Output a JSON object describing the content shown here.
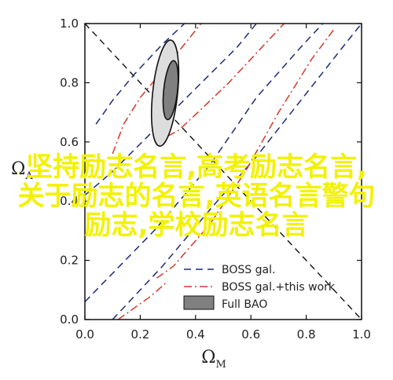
{
  "chart_data": {
    "type": "scatter",
    "title": "",
    "xlabel_main": "Ω",
    "xlabel_sub": "M",
    "ylabel_main": "Ω",
    "ylabel_sub": "Λ",
    "xlim": [
      0,
      1
    ],
    "ylim": [
      0,
      1
    ],
    "xticks": [
      "0.0",
      "0.2",
      "0.4",
      "0.6",
      "0.8",
      "1.0"
    ],
    "yticks": [
      "0.0",
      "0.2",
      "0.4",
      "0.6",
      "0.8",
      "1.0"
    ],
    "reference_lines": [
      {
        "x": [
          0,
          1
        ],
        "y": [
          1,
          0
        ],
        "style": "dashed"
      }
    ],
    "series": [
      {
        "name": "BOSS gal.",
        "style": "dashed",
        "color": "#1f2a7a",
        "contours": [
          [
            [
              0.0,
              0.06
            ],
            [
              0.25,
              0.3
            ],
            [
              0.45,
              0.52
            ],
            [
              0.62,
              0.75
            ],
            [
              0.78,
              0.92
            ],
            [
              0.86,
              1.0
            ]
          ],
          [
            [
              0.1,
              0.0
            ],
            [
              0.28,
              0.18
            ],
            [
              0.46,
              0.38
            ],
            [
              0.62,
              0.55
            ],
            [
              0.78,
              0.74
            ],
            [
              0.94,
              0.93
            ],
            [
              1.0,
              1.0
            ]
          ],
          [
            [
              0.04,
              0.66
            ],
            [
              0.1,
              0.74
            ],
            [
              0.18,
              0.83
            ],
            [
              0.28,
              0.93
            ],
            [
              0.36,
              1.0
            ]
          ],
          [
            [
              0.0,
              0.42
            ],
            [
              0.1,
              0.5
            ],
            [
              0.25,
              0.64
            ],
            [
              0.4,
              0.78
            ],
            [
              0.55,
              0.92
            ],
            [
              0.62,
              1.0
            ]
          ]
        ]
      },
      {
        "name": "BOSS gal.+this work",
        "style": "dashdot",
        "color": "#d03a2a",
        "contours": [
          [
            [
              0.26,
              0.14
            ],
            [
              0.32,
              0.18
            ],
            [
              0.45,
              0.32
            ],
            [
              0.58,
              0.5
            ],
            [
              0.7,
              0.7
            ],
            [
              0.82,
              0.88
            ],
            [
              0.9,
              0.98
            ]
          ],
          [
            [
              0.12,
              0.0
            ],
            [
              0.24,
              0.08
            ],
            [
              0.3,
              0.13
            ]
          ],
          [
            [
              0.1,
              0.56
            ],
            [
              0.14,
              0.66
            ],
            [
              0.2,
              0.75
            ],
            [
              0.28,
              0.84
            ],
            [
              0.36,
              0.93
            ],
            [
              0.42,
              1.0
            ]
          ],
          [
            [
              0.3,
              0.62
            ],
            [
              0.34,
              0.64
            ],
            [
              0.42,
              0.71
            ],
            [
              0.52,
              0.8
            ],
            [
              0.62,
              0.9
            ],
            [
              0.72,
              1.0
            ]
          ]
        ]
      },
      {
        "name": "Full BAO",
        "style": "filled",
        "color": "#808080",
        "inner_color": "#666666",
        "ellipses": [
          {
            "center": [
              0.29,
              0.765
            ],
            "major": 0.18,
            "minor": 0.045,
            "angle_deg": 84,
            "fill": "#dddddd"
          },
          {
            "center": [
              0.31,
              0.775
            ],
            "major": 0.1,
            "minor": 0.025,
            "angle_deg": 84,
            "fill": "#808080"
          }
        ]
      }
    ],
    "legend": {
      "placement": "bottom-right",
      "entries": [
        "BOSS gal.",
        "BOSS gal.+this work",
        "Full BAO"
      ]
    },
    "grid": false
  },
  "overlay": {
    "line1": "坚持励志名言,高考励志名言,",
    "line2": "关于励志的名言,英语名言警句",
    "line3": "励志,学校励志名言"
  }
}
